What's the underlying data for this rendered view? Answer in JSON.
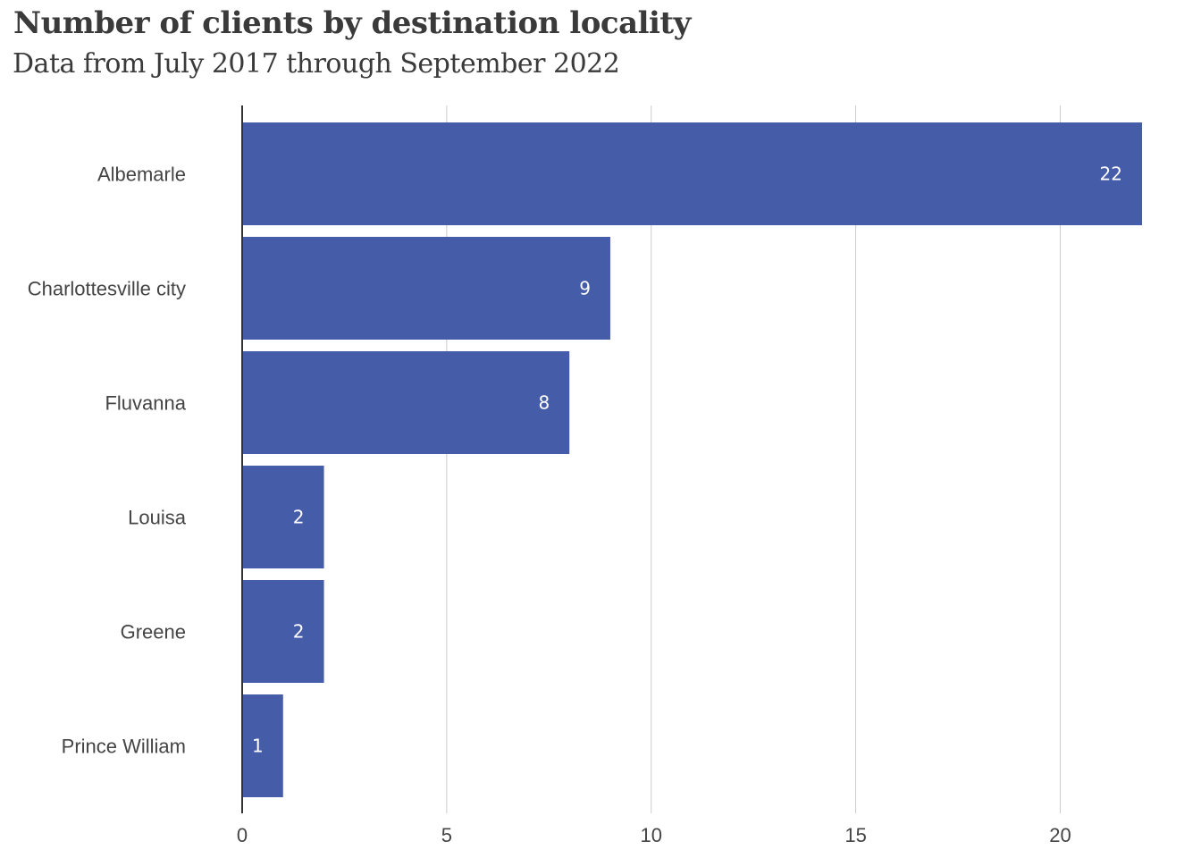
{
  "chart_data": {
    "type": "bar",
    "orientation": "horizontal",
    "title": "Number of clients by destination locality",
    "subtitle": "Data from July 2017 through September 2022",
    "categories": [
      "Albemarle",
      "Charlottesville city",
      "Fluvanna",
      "Louisa",
      "Greene",
      "Prince William"
    ],
    "values": [
      22,
      9,
      8,
      2,
      2,
      1
    ],
    "xlim": [
      0,
      22
    ],
    "xticks": [
      0,
      5,
      10,
      15,
      20
    ],
    "xlabel": "",
    "ylabel": "",
    "grid": true,
    "data_labels": true,
    "bar_color": "#455ca8"
  }
}
